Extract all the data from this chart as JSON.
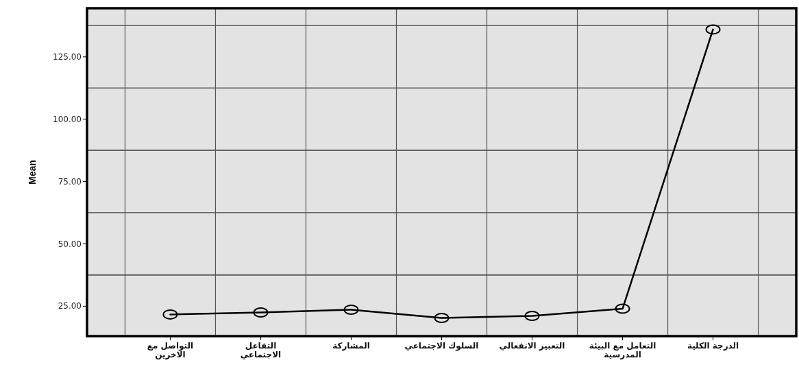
{
  "chart_data": {
    "type": "line",
    "ylabel": "Mean",
    "categories": [
      "التواصل مع الاخرين",
      "التفاعل الاجتماعي",
      "المشاركة",
      "السلوك الاجتماعي",
      "التعبير الانفعالي",
      "التعامل مع البيئة المدرسية",
      "الدرجة الكلية"
    ],
    "series": [
      {
        "color": "#000000",
        "values": [
          21.7,
          22.5,
          23.6,
          20.3,
          21.1,
          24.0,
          136.0
        ]
      }
    ],
    "ylim": [
      13,
      144.5
    ],
    "yticks": [
      {
        "value": 25,
        "label": "25.00"
      },
      {
        "value": 50,
        "label": "50.00"
      },
      {
        "value": 75,
        "label": "75.00"
      },
      {
        "value": 100,
        "label": "100.00"
      },
      {
        "value": 125,
        "label": "125.00"
      }
    ],
    "grid": true,
    "marker": "circle",
    "line_style": "solid"
  }
}
